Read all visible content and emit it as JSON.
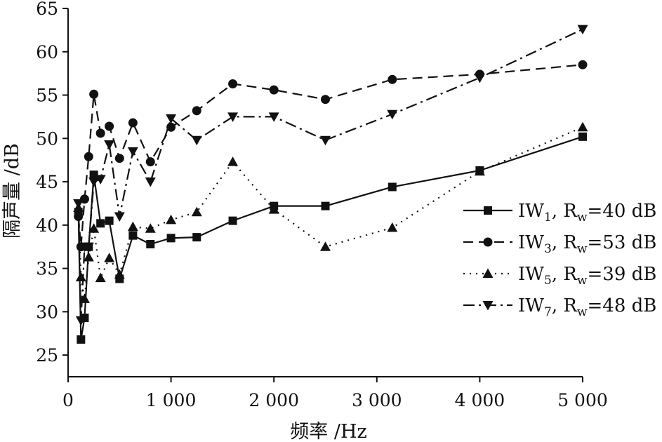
{
  "chart_data": {
    "type": "line",
    "xlabel": "频率 /Hz",
    "ylabel": "隔声量 /dB",
    "xlim": [
      0,
      5000
    ],
    "ylim": [
      22.5,
      65
    ],
    "x_ticks": [
      0,
      1000,
      2000,
      3000,
      4000,
      5000
    ],
    "x_tick_labels": [
      "0",
      "1 000",
      "2 000",
      "3 000",
      "4 000",
      "5 000"
    ],
    "y_ticks": [
      25,
      30,
      35,
      40,
      45,
      50,
      55,
      60,
      65
    ],
    "y_tick_labels": [
      "25",
      "30",
      "35",
      "40",
      "45",
      "50",
      "55",
      "60",
      "65"
    ],
    "grid": false,
    "legend_position": "right",
    "x": [
      100,
      125,
      160,
      200,
      250,
      315,
      400,
      500,
      630,
      800,
      1000,
      1250,
      1600,
      2000,
      2500,
      3150,
      4000,
      5000
    ],
    "series": [
      {
        "name": "IW1, Rw=40 dB",
        "legend": {
          "base": "IW",
          "sub": "1",
          "mid": ", R",
          "sub2": "w",
          "rest": "=40 dB"
        },
        "marker": "square",
        "dash": "solid",
        "values": [
          41.5,
          26.8,
          29.3,
          37.5,
          45.8,
          40.2,
          40.5,
          33.8,
          38.8,
          37.8,
          38.5,
          38.6,
          40.5,
          42.2,
          42.2,
          44.4,
          46.3,
          50.2
        ]
      },
      {
        "name": "IW3, Rw=53 dB",
        "legend": {
          "base": "IW",
          "sub": "3",
          "mid": ", R",
          "sub2": "w",
          "rest": "=53 dB"
        },
        "marker": "circle",
        "dash": "dashed",
        "values": [
          41.0,
          37.5,
          43.0,
          47.9,
          55.1,
          50.6,
          51.4,
          47.7,
          51.8,
          47.3,
          51.3,
          53.2,
          56.3,
          55.6,
          54.5,
          56.8,
          57.4,
          58.5
        ]
      },
      {
        "name": "IW5, Rw=39 dB",
        "legend": {
          "base": "IW",
          "sub": "5",
          "mid": ", R",
          "sub2": "w",
          "rest": "=39 dB"
        },
        "marker": "triangle-up",
        "dash": "dotted",
        "values": [
          42.0,
          34.0,
          31.5,
          36.3,
          39.6,
          33.9,
          36.2,
          34.3,
          39.8,
          39.6,
          40.6,
          41.5,
          47.3,
          41.8,
          37.5,
          39.7,
          46.2,
          51.3
        ]
      },
      {
        "name": "IW7, Rw=48 dB",
        "legend": {
          "base": "IW",
          "sub": "7",
          "mid": ", R",
          "sub2": "w",
          "rest": "=48 dB"
        },
        "marker": "triangle-down",
        "dash": "dashdot",
        "values": [
          42.5,
          29.0,
          37.5,
          37.5,
          45.0,
          45.3,
          49.3,
          41.0,
          48.5,
          45.0,
          52.3,
          49.8,
          52.5,
          52.5,
          49.8,
          52.8,
          57.0,
          62.6
        ]
      }
    ]
  }
}
